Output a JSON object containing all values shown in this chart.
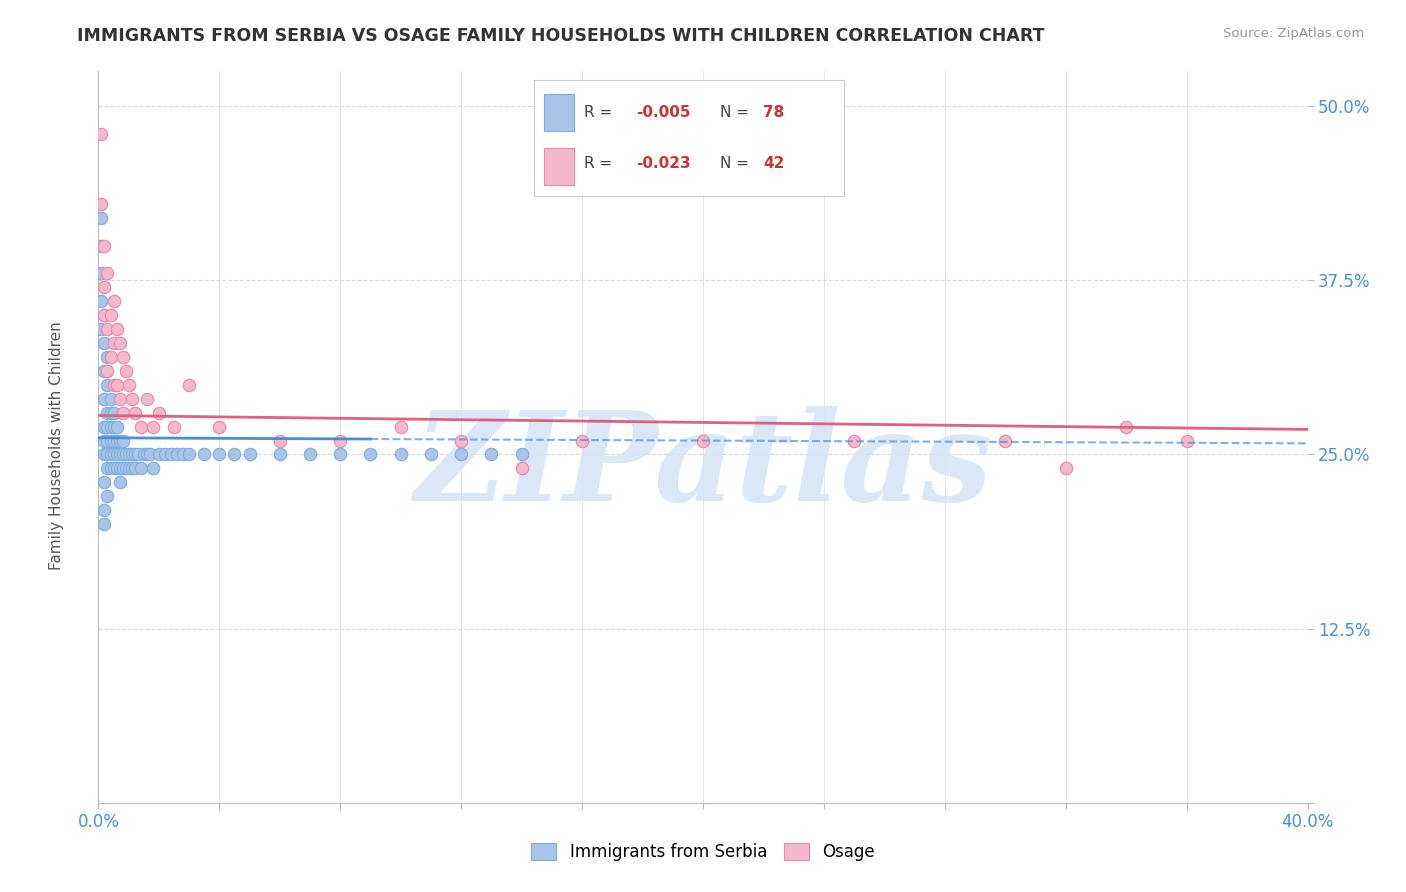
{
  "title": "IMMIGRANTS FROM SERBIA VS OSAGE FAMILY HOUSEHOLDS WITH CHILDREN CORRELATION CHART",
  "source_text": "Source: ZipAtlas.com",
  "ylabel": "Family Households with Children",
  "xmin": 0.0,
  "xmax": 0.4,
  "ymin": 0.0,
  "ymax": 0.525,
  "yticks": [
    0.0,
    0.125,
    0.25,
    0.375,
    0.5
  ],
  "ytick_labels": [
    "",
    "12.5%",
    "25.0%",
    "37.5%",
    "50.0%"
  ],
  "serbia_color": "#aac4e8",
  "serbia_edge": "#7aaee0",
  "osage_color": "#f5b8ca",
  "osage_edge": "#e888aa",
  "trend_serbia_color": "#4a8fd4",
  "trend_osage_color": "#e06080",
  "watermark_color": "#d5e5f5",
  "watermark_text": "ZIPatlas",
  "background_color": "#ffffff",
  "grid_color": "#d8d8d8",
  "legend_serbia_r": "-0.005",
  "legend_serbia_n": "78",
  "legend_osage_r": "-0.023",
  "legend_osage_n": "42",
  "serbia_x": [
    0.001,
    0.001,
    0.001,
    0.001,
    0.001,
    0.002,
    0.002,
    0.002,
    0.002,
    0.002,
    0.002,
    0.002,
    0.002,
    0.002,
    0.002,
    0.003,
    0.003,
    0.003,
    0.003,
    0.003,
    0.003,
    0.003,
    0.003,
    0.004,
    0.004,
    0.004,
    0.004,
    0.004,
    0.004,
    0.005,
    0.005,
    0.005,
    0.005,
    0.005,
    0.006,
    0.006,
    0.006,
    0.006,
    0.007,
    0.007,
    0.007,
    0.007,
    0.008,
    0.008,
    0.008,
    0.009,
    0.009,
    0.01,
    0.01,
    0.011,
    0.011,
    0.012,
    0.012,
    0.013,
    0.014,
    0.015,
    0.016,
    0.017,
    0.018,
    0.02,
    0.022,
    0.024,
    0.026,
    0.028,
    0.03,
    0.035,
    0.04,
    0.045,
    0.05,
    0.06,
    0.07,
    0.08,
    0.09,
    0.1,
    0.11,
    0.12,
    0.13,
    0.14
  ],
  "serbia_y": [
    0.42,
    0.4,
    0.38,
    0.36,
    0.34,
    0.35,
    0.33,
    0.31,
    0.29,
    0.27,
    0.26,
    0.25,
    0.23,
    0.21,
    0.2,
    0.32,
    0.3,
    0.28,
    0.27,
    0.26,
    0.25,
    0.24,
    0.22,
    0.29,
    0.28,
    0.27,
    0.26,
    0.25,
    0.24,
    0.28,
    0.27,
    0.26,
    0.25,
    0.24,
    0.27,
    0.26,
    0.25,
    0.24,
    0.26,
    0.25,
    0.24,
    0.23,
    0.26,
    0.25,
    0.24,
    0.25,
    0.24,
    0.25,
    0.24,
    0.25,
    0.24,
    0.25,
    0.24,
    0.25,
    0.24,
    0.25,
    0.25,
    0.25,
    0.24,
    0.25,
    0.25,
    0.25,
    0.25,
    0.25,
    0.25,
    0.25,
    0.25,
    0.25,
    0.25,
    0.25,
    0.25,
    0.25,
    0.25,
    0.25,
    0.25,
    0.25,
    0.25,
    0.25
  ],
  "osage_x": [
    0.001,
    0.001,
    0.002,
    0.002,
    0.002,
    0.003,
    0.003,
    0.003,
    0.004,
    0.004,
    0.005,
    0.005,
    0.005,
    0.006,
    0.006,
    0.007,
    0.007,
    0.008,
    0.008,
    0.009,
    0.01,
    0.011,
    0.012,
    0.014,
    0.016,
    0.018,
    0.02,
    0.025,
    0.03,
    0.04,
    0.06,
    0.08,
    0.1,
    0.12,
    0.14,
    0.16,
    0.2,
    0.25,
    0.3,
    0.32,
    0.34,
    0.36
  ],
  "osage_y": [
    0.48,
    0.43,
    0.4,
    0.37,
    0.35,
    0.38,
    0.34,
    0.31,
    0.35,
    0.32,
    0.36,
    0.33,
    0.3,
    0.34,
    0.3,
    0.33,
    0.29,
    0.32,
    0.28,
    0.31,
    0.3,
    0.29,
    0.28,
    0.27,
    0.29,
    0.27,
    0.28,
    0.27,
    0.3,
    0.27,
    0.26,
    0.26,
    0.27,
    0.26,
    0.24,
    0.26,
    0.26,
    0.26,
    0.26,
    0.24,
    0.27,
    0.26
  ]
}
